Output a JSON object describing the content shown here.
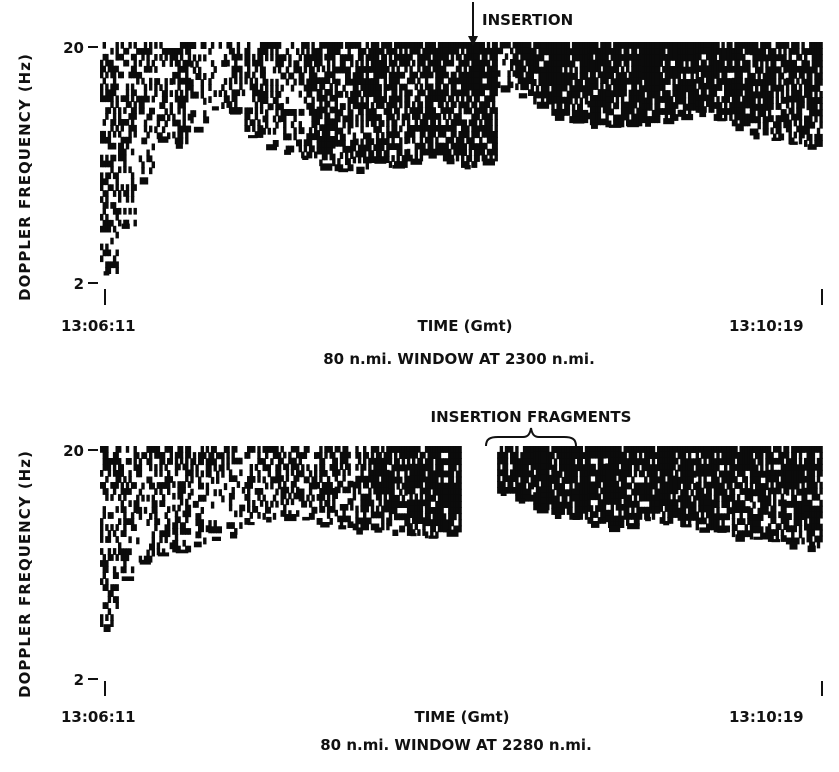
{
  "chart_data": [
    {
      "type": "heatmap",
      "title": "",
      "subtitle": "80 n.mi. WINDOW AT 2300 n.mi.",
      "ylabel": "DOPPLER FREQUENCY (Hz)",
      "xlabel": "TIME (Gmt)",
      "y_scale": "log",
      "ylim": [
        2,
        20
      ],
      "y_ticks": [
        "20",
        "2"
      ],
      "x_ticks": [
        "13:06:11",
        "13:10:19"
      ],
      "annotations": [
        {
          "text": "INSERTION",
          "time_fraction": 0.57
        }
      ],
      "columns": 40,
      "echo_lower_edge_hz": [
        2.2,
        3.5,
        5.5,
        8.2,
        7.8,
        9,
        11,
        10.5,
        8.3,
        7.6,
        7.2,
        6.8,
        6.3,
        6,
        6.1,
        6.5,
        6.2,
        6.6,
        7,
        6.6,
        6.2,
        6.6,
        13.5,
        12.5,
        11.5,
        10.3,
        9.6,
        9.4,
        9.2,
        9.3,
        9.6,
        9.8,
        10.2,
        10.6,
        9.8,
        9.3,
        8.5,
        8.1,
        7.8,
        7.6
      ],
      "column_density": [
        0.55,
        0.5,
        0.45,
        0.4,
        0.55,
        0.45,
        0.3,
        0.5,
        0.6,
        0.5,
        0.45,
        0.65,
        0.75,
        0.6,
        0.7,
        0.85,
        0.8,
        0.75,
        0.9,
        0.85,
        0.8,
        0.9,
        0.4,
        0.85,
        0.9,
        0.95,
        0.92,
        0.95,
        0.9,
        0.92,
        0.95,
        0.9,
        0.88,
        0.92,
        0.9,
        0.85,
        0.8,
        0.75,
        0.8,
        0.85
      ]
    },
    {
      "type": "heatmap",
      "title": "",
      "subtitle": "80 n.mi. WINDOW AT 2280 n.mi.",
      "ylabel": "DOPPLER FREQUENCY (Hz)",
      "xlabel": "TIME (Gmt)",
      "y_scale": "log",
      "ylim": [
        2,
        20
      ],
      "y_ticks": [
        "20",
        "2"
      ],
      "x_ticks": [
        "13:06:11",
        "13:10:19"
      ],
      "annotations": [
        {
          "text": "INSERTION FRAGMENTS",
          "time_range_fraction": [
            0.55,
            0.72
          ]
        }
      ],
      "columns": 40,
      "echo_lower_edge_hz": [
        3.4,
        5.5,
        6.5,
        7,
        7.2,
        7.8,
        8.2,
        8.6,
        9.5,
        10,
        10.3,
        10,
        9.5,
        9.2,
        9,
        9,
        8.8,
        8.5,
        8.3,
        8.8,
        20,
        20,
        13,
        12,
        11,
        10.5,
        10,
        9.6,
        9.2,
        9.4,
        10,
        9.6,
        9.3,
        9,
        8.8,
        8.4,
        8.2,
        8,
        7.8,
        7.5
      ],
      "column_density": [
        0.5,
        0.45,
        0.4,
        0.45,
        0.5,
        0.45,
        0.4,
        0.45,
        0.5,
        0.45,
        0.55,
        0.6,
        0.55,
        0.6,
        0.65,
        0.7,
        0.75,
        0.8,
        0.85,
        0.9,
        0.0,
        0.0,
        0.9,
        0.92,
        0.95,
        0.9,
        0.92,
        0.95,
        0.9,
        0.88,
        0.9,
        0.92,
        0.88,
        0.9,
        0.85,
        0.82,
        0.8,
        0.78,
        0.8,
        0.82
      ]
    }
  ]
}
